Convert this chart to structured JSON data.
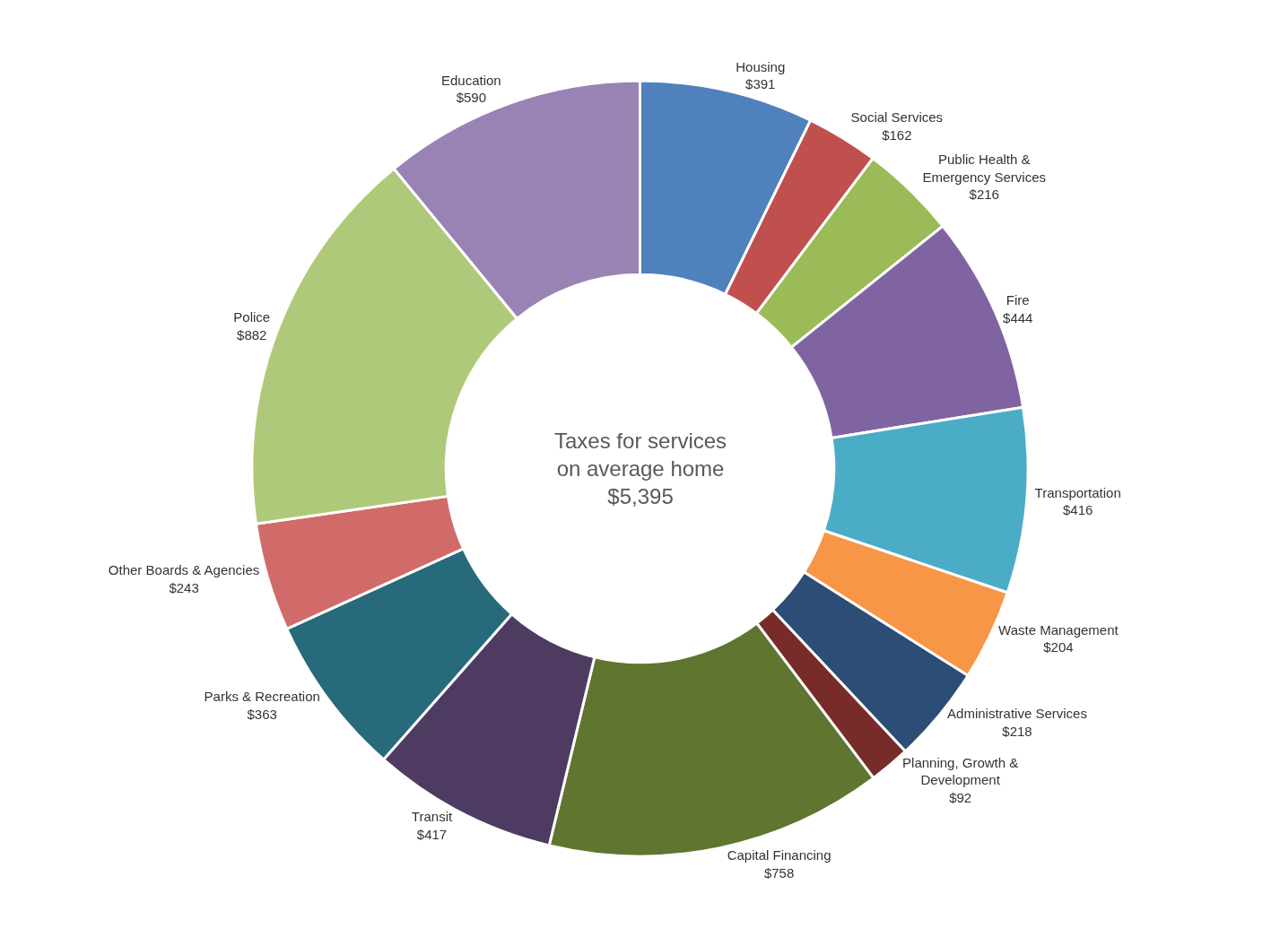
{
  "chart_data": {
    "type": "donut",
    "categories": [
      "Housing",
      "Social Services",
      "Public Health &\nEmergency Services",
      "Fire",
      "Transportation",
      "Waste Management",
      "Administrative Services",
      "Planning, Growth &\nDevelopment",
      "Capital Financing",
      "Transit",
      "Parks & Recreation",
      "Other Boards & Agencies",
      "Police",
      "Education"
    ],
    "values": [
      391,
      162,
      216,
      444,
      416,
      204,
      218,
      92,
      758,
      417,
      363,
      243,
      882,
      590
    ],
    "value_labels": [
      "$391",
      "$162",
      "$216",
      "$444",
      "$416",
      "$204",
      "$218",
      "$92",
      "$758",
      "$417",
      "$363",
      "$243",
      "$882",
      "$590"
    ],
    "colors": [
      "#4f81bd",
      "#c0504d",
      "#9bbb59",
      "#8064a2",
      "#4bacc6",
      "#f79646",
      "#2c4d75",
      "#772c2a",
      "#5f7530",
      "#4d3b62",
      "#276a7c",
      "#d16b69",
      "#afc97a",
      "#9983b5"
    ],
    "annotations": [
      "Taxes for services\non average home\n$5,395"
    ],
    "legend": false
  }
}
